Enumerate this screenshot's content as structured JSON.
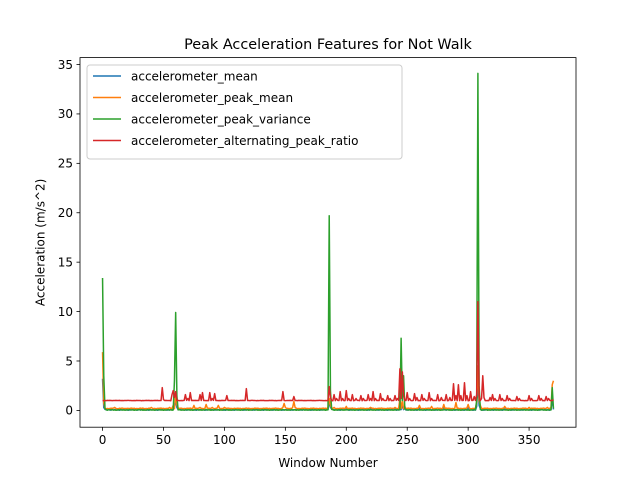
{
  "chart_data": {
    "type": "line",
    "title": "Peak Acceleration Features for Not Walk",
    "xlabel": "Window Number",
    "ylabel": "Acceleration (m/s^2)",
    "xlim": [
      -18.5,
      388.5
    ],
    "ylim": [
      -1.7,
      35.7
    ],
    "xticks": [
      0,
      50,
      100,
      150,
      200,
      250,
      300,
      350
    ],
    "yticks": [
      0,
      5,
      10,
      15,
      20,
      25,
      30,
      35
    ],
    "x_range": [
      0,
      370
    ],
    "grid": false,
    "legend_position": "top-left",
    "series": [
      {
        "name": "accelerometer_mean",
        "color": "#1f77b4",
        "baseline": 0.05,
        "points": [
          [
            0,
            3.2
          ],
          [
            1,
            0.3
          ],
          [
            2,
            0.1
          ],
          [
            5,
            0.15
          ],
          [
            30,
            0.1
          ],
          [
            58,
            0.1
          ],
          [
            59,
            0.6
          ],
          [
            60,
            0.9
          ],
          [
            61,
            0.3
          ],
          [
            62,
            0.1
          ],
          [
            120,
            0.1
          ],
          [
            185,
            0.1
          ],
          [
            186,
            0.9
          ],
          [
            187,
            0.3
          ],
          [
            188,
            0.15
          ],
          [
            200,
            0.15
          ],
          [
            220,
            0.2
          ],
          [
            240,
            0.15
          ],
          [
            244,
            0.6
          ],
          [
            246,
            0.5
          ],
          [
            248,
            0.2
          ],
          [
            260,
            0.25
          ],
          [
            280,
            0.3
          ],
          [
            300,
            0.3
          ],
          [
            307,
            0.4
          ],
          [
            308,
            2.6
          ],
          [
            309,
            0.5
          ],
          [
            310,
            0.2
          ],
          [
            330,
            0.15
          ],
          [
            360,
            0.1
          ],
          [
            368,
            0.1
          ],
          [
            369,
            1.2
          ],
          [
            370,
            0.1
          ]
        ]
      },
      {
        "name": "accelerometer_peak_mean",
        "color": "#ff7f0e",
        "baseline": 0.2,
        "points": [
          [
            0,
            5.9
          ],
          [
            1,
            0.8
          ],
          [
            2,
            0.2
          ],
          [
            10,
            0.3
          ],
          [
            20,
            0.2
          ],
          [
            40,
            0.3
          ],
          [
            55,
            0.3
          ],
          [
            58,
            0.5
          ],
          [
            60,
            1.5
          ],
          [
            61,
            0.6
          ],
          [
            63,
            0.2
          ],
          [
            75,
            0.5
          ],
          [
            80,
            0.3
          ],
          [
            85,
            0.6
          ],
          [
            90,
            0.3
          ],
          [
            95,
            0.5
          ],
          [
            100,
            0.3
          ],
          [
            110,
            0.2
          ],
          [
            148,
            0.3
          ],
          [
            149,
            0.7
          ],
          [
            150,
            0.3
          ],
          [
            156,
            0.3
          ],
          [
            157,
            0.9
          ],
          [
            158,
            0.3
          ],
          [
            180,
            0.2
          ],
          [
            185,
            0.3
          ],
          [
            186,
            1.2
          ],
          [
            187,
            0.5
          ],
          [
            190,
            0.3
          ],
          [
            200,
            0.4
          ],
          [
            220,
            0.3
          ],
          [
            240,
            0.3
          ],
          [
            244,
            1.2
          ],
          [
            246,
            1.0
          ],
          [
            248,
            0.4
          ],
          [
            260,
            0.5
          ],
          [
            270,
            0.4
          ],
          [
            280,
            0.6
          ],
          [
            290,
            0.8
          ],
          [
            300,
            0.6
          ],
          [
            307,
            0.8
          ],
          [
            308,
            4.5
          ],
          [
            309,
            1.0
          ],
          [
            310,
            0.5
          ],
          [
            330,
            0.4
          ],
          [
            350,
            0.3
          ],
          [
            365,
            0.3
          ],
          [
            368,
            0.3
          ],
          [
            369,
            2.6
          ],
          [
            370,
            3.0
          ]
        ]
      },
      {
        "name": "accelerometer_peak_variance",
        "color": "#2ca02c",
        "baseline": 0.05,
        "points": [
          [
            0,
            13.4
          ],
          [
            1,
            3.5
          ],
          [
            2,
            0.2
          ],
          [
            3,
            0.05
          ],
          [
            58,
            0.05
          ],
          [
            59,
            3.0
          ],
          [
            60,
            9.9
          ],
          [
            61,
            1.5
          ],
          [
            62,
            0.05
          ],
          [
            185,
            0.05
          ],
          [
            186,
            19.7
          ],
          [
            187,
            2.0
          ],
          [
            188,
            0.1
          ],
          [
            200,
            0.05
          ],
          [
            243,
            0.05
          ],
          [
            245,
            7.3
          ],
          [
            246,
            1.0
          ],
          [
            247,
            3.5
          ],
          [
            248,
            0.2
          ],
          [
            250,
            0.05
          ],
          [
            306,
            0.05
          ],
          [
            307,
            1.0
          ],
          [
            308,
            34.1
          ],
          [
            309,
            2.5
          ],
          [
            310,
            0.1
          ],
          [
            312,
            0.05
          ],
          [
            368,
            0.05
          ],
          [
            369,
            2.3
          ],
          [
            370,
            0.2
          ]
        ]
      },
      {
        "name": "accelerometer_alternating_peak_ratio",
        "color": "#d62728",
        "baseline": 1.0,
        "points": [
          [
            0,
            1.0
          ],
          [
            10,
            1.0
          ],
          [
            48,
            1.0
          ],
          [
            49,
            2.3
          ],
          [
            50,
            1.1
          ],
          [
            55,
            1.0
          ],
          [
            57,
            1.6
          ],
          [
            58,
            2.0
          ],
          [
            59,
            1.3
          ],
          [
            60,
            1.9
          ],
          [
            61,
            1.0
          ],
          [
            65,
            1.0
          ],
          [
            68,
            1.6
          ],
          [
            70,
            1.2
          ],
          [
            72,
            1.8
          ],
          [
            73,
            1.0
          ],
          [
            78,
            1.0
          ],
          [
            80,
            1.6
          ],
          [
            82,
            1.8
          ],
          [
            84,
            1.0
          ],
          [
            88,
            1.8
          ],
          [
            90,
            1.2
          ],
          [
            92,
            1.7
          ],
          [
            94,
            1.0
          ],
          [
            100,
            1.0
          ],
          [
            102,
            1.5
          ],
          [
            104,
            1.0
          ],
          [
            117,
            1.0
          ],
          [
            118,
            2.2
          ],
          [
            119,
            1.0
          ],
          [
            147,
            1.0
          ],
          [
            148,
            1.9
          ],
          [
            149,
            1.0
          ],
          [
            156,
            1.0
          ],
          [
            157,
            1.4
          ],
          [
            158,
            1.0
          ],
          [
            185,
            1.0
          ],
          [
            186,
            2.4
          ],
          [
            187,
            1.3
          ],
          [
            190,
            1.6
          ],
          [
            192,
            1.2
          ],
          [
            195,
            1.9
          ],
          [
            197,
            1.2
          ],
          [
            200,
            2.0
          ],
          [
            202,
            1.2
          ],
          [
            205,
            1.6
          ],
          [
            208,
            1.2
          ],
          [
            212,
            1.5
          ],
          [
            214,
            1.2
          ],
          [
            218,
            1.6
          ],
          [
            220,
            1.2
          ],
          [
            222,
            1.9
          ],
          [
            224,
            1.2
          ],
          [
            228,
            1.7
          ],
          [
            230,
            1.2
          ],
          [
            234,
            1.5
          ],
          [
            236,
            1.2
          ],
          [
            240,
            1.5
          ],
          [
            242,
            1.2
          ],
          [
            244,
            4.2
          ],
          [
            245,
            1.2
          ],
          [
            246,
            3.9
          ],
          [
            247,
            1.5
          ],
          [
            250,
            1.8
          ],
          [
            252,
            1.2
          ],
          [
            256,
            1.7
          ],
          [
            258,
            1.3
          ],
          [
            262,
            1.6
          ],
          [
            264,
            1.2
          ],
          [
            268,
            1.8
          ],
          [
            270,
            1.2
          ],
          [
            275,
            1.6
          ],
          [
            278,
            1.3
          ],
          [
            282,
            1.6
          ],
          [
            285,
            1.3
          ],
          [
            288,
            2.7
          ],
          [
            290,
            1.5
          ],
          [
            292,
            2.6
          ],
          [
            294,
            1.5
          ],
          [
            297,
            2.8
          ],
          [
            299,
            1.5
          ],
          [
            302,
            1.9
          ],
          [
            305,
            1.4
          ],
          [
            307,
            1.6
          ],
          [
            308,
            11.0
          ],
          [
            309,
            1.5
          ],
          [
            311,
            1.2
          ],
          [
            312,
            3.5
          ],
          [
            313,
            1.3
          ],
          [
            318,
            1.3
          ],
          [
            320,
            1.6
          ],
          [
            322,
            1.2
          ],
          [
            326,
            1.6
          ],
          [
            328,
            1.2
          ],
          [
            332,
            1.5
          ],
          [
            334,
            1.2
          ],
          [
            340,
            1.4
          ],
          [
            342,
            1.2
          ],
          [
            350,
            1.5
          ],
          [
            352,
            1.2
          ],
          [
            358,
            1.5
          ],
          [
            360,
            1.2
          ],
          [
            364,
            1.4
          ],
          [
            366,
            1.2
          ],
          [
            370,
            1.1
          ]
        ]
      }
    ]
  }
}
